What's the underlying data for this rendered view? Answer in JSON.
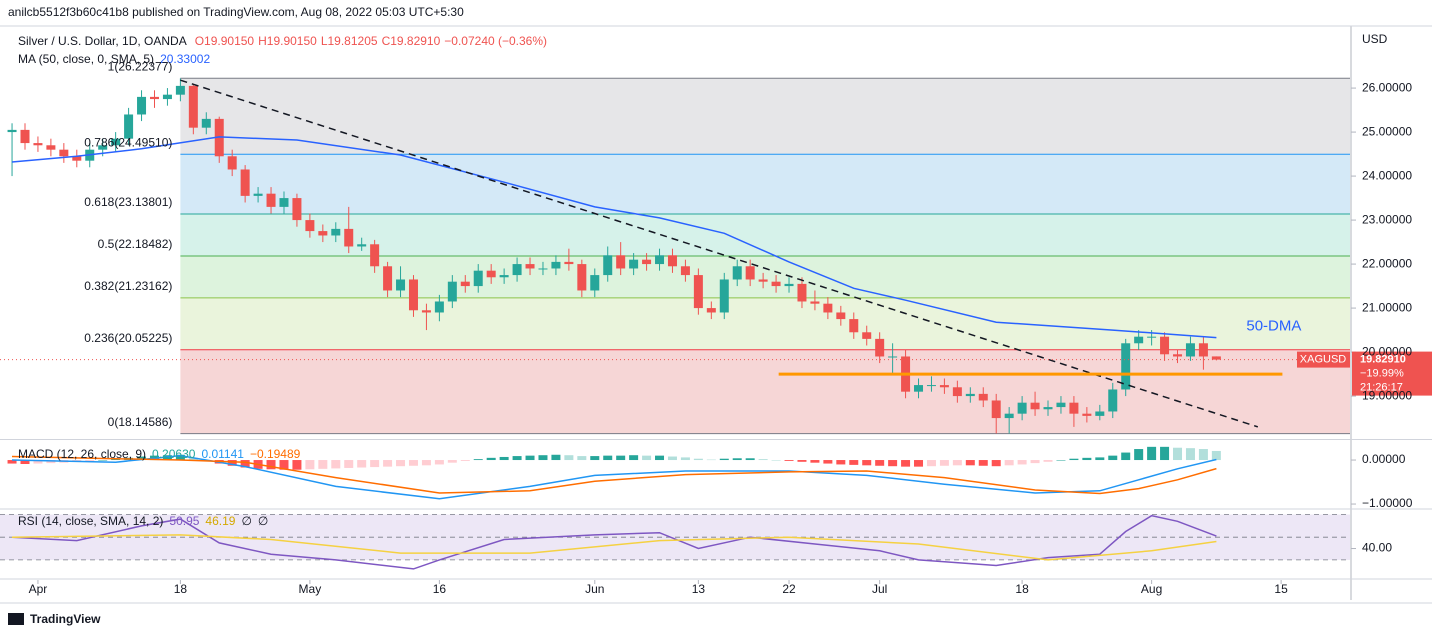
{
  "header": {
    "publisher": "anilcb5512f3b60c41b8 published on TradingView.com, Aug 08, 2022 05:03 UTC+5:30"
  },
  "footer": {
    "brand": "TradingView"
  },
  "chart_data": [
    {
      "type": "candlestick",
      "title": "Silver / U.S. Dollar, 1D, OANDA",
      "legend_items": [
        "O19.90150",
        "H19.90150",
        "L19.81205",
        "C19.82910",
        "−0.07240 (−0.36%)"
      ],
      "currency": "USD",
      "symbol": "XAGUSD",
      "last_price_label": "19.82910",
      "change_label": "−19.99%",
      "countdown": "21:26:17",
      "up_color": "#26a69a",
      "down_color": "#ef5350",
      "xlim": [
        -0.93,
        103.32
      ],
      "xticks": [
        {
          "value": 2,
          "label": "Apr"
        },
        {
          "value": 13,
          "label": "18"
        },
        {
          "value": 23,
          "label": "May"
        },
        {
          "value": 33,
          "label": "16"
        },
        {
          "value": 45,
          "label": "Jun"
        },
        {
          "value": 53,
          "label": "13"
        },
        {
          "value": 60,
          "label": "22"
        },
        {
          "value": 67,
          "label": "Jul"
        },
        {
          "value": 78,
          "label": "18"
        },
        {
          "value": 88,
          "label": "Aug"
        },
        {
          "value": 98,
          "label": "15"
        }
      ],
      "ylim": [
        18.07,
        27.32
      ],
      "yticks": [
        {
          "value": 19,
          "label": "19.00000"
        },
        {
          "value": 20,
          "label": "20.00000"
        },
        {
          "value": 21,
          "label": "21.00000"
        },
        {
          "value": 22,
          "label": "22.00000"
        },
        {
          "value": 23,
          "label": "23.00000"
        },
        {
          "value": 24,
          "label": "24.00000"
        },
        {
          "value": 25,
          "label": "25.00000"
        },
        {
          "value": 26,
          "label": "26.00000"
        }
      ],
      "open": [
        25.0,
        25.05,
        24.75,
        24.7,
        24.6,
        24.45,
        24.35,
        24.6,
        24.7,
        24.85,
        25.4,
        25.8,
        25.75,
        25.85,
        26.05,
        25.1,
        25.3,
        24.45,
        24.15,
        23.55,
        23.6,
        23.3,
        23.5,
        23.0,
        22.75,
        22.65,
        22.8,
        22.4,
        22.45,
        21.95,
        21.4,
        21.65,
        20.95,
        20.9,
        21.15,
        21.6,
        21.5,
        21.85,
        21.7,
        21.75,
        22.0,
        21.9,
        21.9,
        22.05,
        22.0,
        21.4,
        21.75,
        22.2,
        21.9,
        22.1,
        22.0,
        22.2,
        21.95,
        21.75,
        21.0,
        20.9,
        21.65,
        21.95,
        21.65,
        21.6,
        21.5,
        21.55,
        21.15,
        21.1,
        20.9,
        20.75,
        20.45,
        20.3,
        19.9,
        19.9,
        19.1,
        19.25,
        19.25,
        19.2,
        19.0,
        19.05,
        18.9,
        18.5,
        18.6,
        18.85,
        18.7,
        18.75,
        18.85,
        18.6,
        18.55,
        18.65,
        19.15,
        20.2,
        20.35,
        20.35,
        19.95,
        19.9,
        20.2,
        19.9015
      ],
      "high": [
        25.2,
        25.2,
        24.9,
        24.85,
        24.75,
        24.6,
        24.75,
        24.85,
        25.0,
        25.55,
        25.95,
        25.95,
        26.0,
        26.22,
        26.1,
        25.45,
        25.35,
        24.6,
        24.25,
        23.75,
        23.75,
        23.65,
        23.6,
        23.15,
        22.9,
        22.95,
        23.3,
        22.6,
        22.55,
        22.05,
        21.95,
        21.75,
        21.1,
        21.3,
        21.75,
        21.75,
        22.0,
        22.0,
        21.9,
        22.15,
        22.15,
        22.05,
        22.2,
        22.35,
        22.1,
        21.9,
        22.4,
        22.5,
        22.25,
        22.25,
        22.35,
        22.35,
        22.1,
        21.9,
        21.15,
        21.8,
        22.1,
        22.1,
        21.8,
        21.75,
        21.7,
        21.7,
        21.4,
        21.25,
        21.05,
        20.9,
        20.6,
        20.45,
        20.2,
        20.05,
        19.4,
        19.45,
        19.4,
        19.35,
        19.2,
        19.2,
        19.05,
        18.75,
        19.0,
        19.1,
        18.9,
        19.0,
        19.0,
        18.75,
        18.8,
        19.3,
        20.3,
        20.5,
        20.5,
        20.45,
        20.05,
        20.35,
        20.35,
        19.9015
      ],
      "low": [
        24.0,
        24.6,
        24.55,
        24.45,
        24.3,
        24.2,
        24.2,
        24.45,
        24.55,
        24.7,
        25.25,
        25.55,
        25.6,
        25.7,
        24.95,
        24.95,
        24.3,
        24.0,
        23.4,
        23.4,
        23.15,
        23.15,
        22.85,
        22.6,
        22.5,
        22.5,
        22.25,
        22.3,
        21.8,
        21.25,
        21.25,
        20.8,
        20.5,
        20.7,
        21.0,
        21.35,
        21.35,
        21.55,
        21.55,
        21.6,
        21.75,
        21.75,
        21.75,
        21.85,
        21.25,
        21.25,
        21.6,
        21.75,
        21.75,
        21.85,
        21.85,
        21.8,
        21.6,
        20.85,
        20.75,
        20.75,
        21.5,
        21.5,
        21.45,
        21.35,
        21.35,
        21.0,
        20.95,
        20.75,
        20.6,
        20.3,
        20.15,
        19.75,
        19.5,
        18.95,
        18.95,
        19.1,
        19.05,
        18.85,
        18.85,
        18.75,
        18.15,
        18.15,
        18.45,
        18.55,
        18.55,
        18.6,
        18.3,
        18.4,
        18.45,
        18.5,
        19.0,
        20.05,
        20.15,
        19.8,
        19.75,
        19.8,
        19.6,
        19.81205
      ],
      "close": [
        25.05,
        24.75,
        24.7,
        24.6,
        24.45,
        24.35,
        24.6,
        24.7,
        24.85,
        25.4,
        25.8,
        25.75,
        25.85,
        26.05,
        25.1,
        25.3,
        24.45,
        24.15,
        23.55,
        23.6,
        23.3,
        23.5,
        23.0,
        22.75,
        22.65,
        22.8,
        22.4,
        22.45,
        21.95,
        21.4,
        21.65,
        20.95,
        20.9,
        21.15,
        21.6,
        21.5,
        21.85,
        21.7,
        21.75,
        22.0,
        21.9,
        21.9,
        22.05,
        22.0,
        21.4,
        21.75,
        22.2,
        21.9,
        22.1,
        22.0,
        22.2,
        21.95,
        21.75,
        21.0,
        20.9,
        21.65,
        21.95,
        21.65,
        21.6,
        21.5,
        21.55,
        21.15,
        21.1,
        20.9,
        20.75,
        20.45,
        20.3,
        19.9,
        19.9,
        19.1,
        19.25,
        19.25,
        19.2,
        19.0,
        19.05,
        18.9,
        18.5,
        18.6,
        18.85,
        18.7,
        18.75,
        18.85,
        18.6,
        18.55,
        18.65,
        19.15,
        20.2,
        20.35,
        20.35,
        19.95,
        19.9,
        20.2,
        19.9,
        19.8291
      ],
      "ma": {
        "name": "MA (50, close, 0, SMA, 5)",
        "value_label": "20.33002",
        "color": "#2962ff",
        "annotation": "50-DMA",
        "x": [
          0,
          5,
          10,
          16,
          22,
          30,
          38,
          45,
          50,
          55,
          60,
          65,
          69,
          76,
          85,
          93
        ],
        "values": [
          24.32,
          24.45,
          24.62,
          24.89,
          24.82,
          24.48,
          23.86,
          23.3,
          23.05,
          22.7,
          22.05,
          21.45,
          21.18,
          20.68,
          20.5,
          20.33
        ]
      },
      "fib_start": 13,
      "fib_levels": [
        {
          "value": 26.22377,
          "label": "1(26.22377)"
        },
        {
          "value": 24.4951,
          "label": "0.786(24.49510)"
        },
        {
          "value": 23.13801,
          "label": "0.618(23.13801)"
        },
        {
          "value": 22.18482,
          "label": "0.5(22.18482)"
        },
        {
          "value": 21.23162,
          "label": "0.382(21.23162)"
        },
        {
          "value": 20.05225,
          "label": "0.236(20.05225)"
        },
        {
          "value": 18.14586,
          "label": "0(18.14586)"
        }
      ],
      "fib_line_colors": [
        "#787b86",
        "#2196f3",
        "#26a69a",
        "#4caf50",
        "#8bc34a",
        "#f23645",
        "#787b86"
      ],
      "fib_zone_colors": [
        "#e6e6e8",
        "#d4e9f7",
        "#d6f2ea",
        "#ddf3dd",
        "#eaf4dc",
        "#f6d6d6"
      ],
      "trendline": {
        "x": [
          13,
          96.2
        ],
        "values": [
          26.18,
          18.3
        ],
        "color": "#131722"
      },
      "support": {
        "value": 19.5,
        "x": [
          59.2,
          98.1
        ],
        "color": "#ff9800"
      }
    },
    {
      "type": "macd",
      "title": "MACD (12, 26, close, 9)",
      "legend_items": [
        "0.20630",
        "0.01141",
        "−0.19489"
      ],
      "ylim": [
        -1.09,
        0.41
      ],
      "yticks": [
        {
          "value": 0,
          "label": "0.00000"
        },
        {
          "value": -1,
          "label": "−1.00000"
        }
      ],
      "histogram": [
        -0.08,
        -0.09,
        -0.08,
        -0.07,
        -0.06,
        -0.04,
        -0.02,
        0.0,
        0.02,
        0.05,
        0.08,
        0.1,
        0.11,
        0.12,
        0.05,
        -0.02,
        -0.08,
        -0.13,
        -0.17,
        -0.2,
        -0.21,
        -0.22,
        -0.22,
        -0.21,
        -0.2,
        -0.19,
        -0.18,
        -0.17,
        -0.16,
        -0.15,
        -0.14,
        -0.13,
        -0.12,
        -0.1,
        -0.06,
        -0.02,
        0.02,
        0.05,
        0.07,
        0.09,
        0.1,
        0.11,
        0.12,
        0.11,
        0.09,
        0.09,
        0.1,
        0.1,
        0.11,
        0.1,
        0.1,
        0.08,
        0.06,
        0.03,
        0.01,
        0.03,
        0.04,
        0.04,
        0.02,
        0.0,
        -0.02,
        -0.04,
        -0.06,
        -0.08,
        -0.1,
        -0.11,
        -0.12,
        -0.13,
        -0.14,
        -0.15,
        -0.15,
        -0.14,
        -0.13,
        -0.12,
        -0.12,
        -0.13,
        -0.14,
        -0.12,
        -0.1,
        -0.07,
        -0.04,
        0.0,
        0.03,
        0.05,
        0.06,
        0.1,
        0.17,
        0.25,
        0.3,
        0.3,
        0.28,
        0.27,
        0.25,
        0.2063
      ],
      "histogram_colors": [
        "#26a69a",
        "#b2dfdb",
        "#ff5252",
        "#ffcdd2"
      ],
      "series": [
        {
          "name": "MACD",
          "color": "#2196f3",
          "x": [
            0,
            8,
            13,
            18,
            25,
            33,
            40,
            45,
            52,
            60,
            66,
            72,
            79,
            84,
            87,
            90,
            93
          ],
          "values": [
            0.0,
            -0.05,
            0.1,
            -0.15,
            -0.6,
            -0.88,
            -0.6,
            -0.35,
            -0.25,
            -0.25,
            -0.35,
            -0.55,
            -0.75,
            -0.7,
            -0.45,
            -0.2,
            0.01141
          ]
        },
        {
          "name": "Signal",
          "color": "#ff6d00",
          "x": [
            0,
            8,
            13,
            18,
            25,
            33,
            40,
            45,
            52,
            60,
            66,
            72,
            79,
            84,
            87,
            90,
            93
          ],
          "values": [
            0.08,
            0.03,
            0.0,
            -0.05,
            -0.4,
            -0.75,
            -0.7,
            -0.48,
            -0.33,
            -0.27,
            -0.25,
            -0.4,
            -0.68,
            -0.76,
            -0.65,
            -0.45,
            -0.19489
          ]
        }
      ]
    },
    {
      "type": "rsi",
      "title": "RSI (14, close, SMA, 14, 2)",
      "legend_items": [
        "50.95",
        "46.19",
        "∅",
        "∅"
      ],
      "ylim": [
        14,
        74
      ],
      "yticks": [
        {
          "value": 40,
          "label": "40.00"
        }
      ],
      "bands": [
        70,
        50,
        30
      ],
      "band_fill": "#ede7f6",
      "series": [
        {
          "name": "RSI",
          "color": "#7e57c2",
          "x": [
            0,
            5,
            10,
            13,
            16,
            20,
            25,
            31,
            33,
            38,
            45,
            50,
            53,
            57,
            62,
            67,
            70,
            76,
            80,
            84,
            86,
            88,
            90,
            93
          ],
          "values": [
            50,
            47,
            60,
            66,
            45,
            35,
            30,
            22,
            30,
            48,
            52,
            54,
            40,
            50,
            44,
            38,
            30,
            25,
            32,
            35,
            55,
            69,
            64,
            50.95
          ]
        },
        {
          "name": "RSI-based MA",
          "color": "#f5d142",
          "x": [
            0,
            13,
            20,
            30,
            40,
            50,
            60,
            70,
            80,
            88,
            93
          ],
          "values": [
            50,
            52,
            48,
            36,
            36,
            47,
            50,
            44,
            30,
            38,
            46.19
          ]
        }
      ]
    }
  ]
}
